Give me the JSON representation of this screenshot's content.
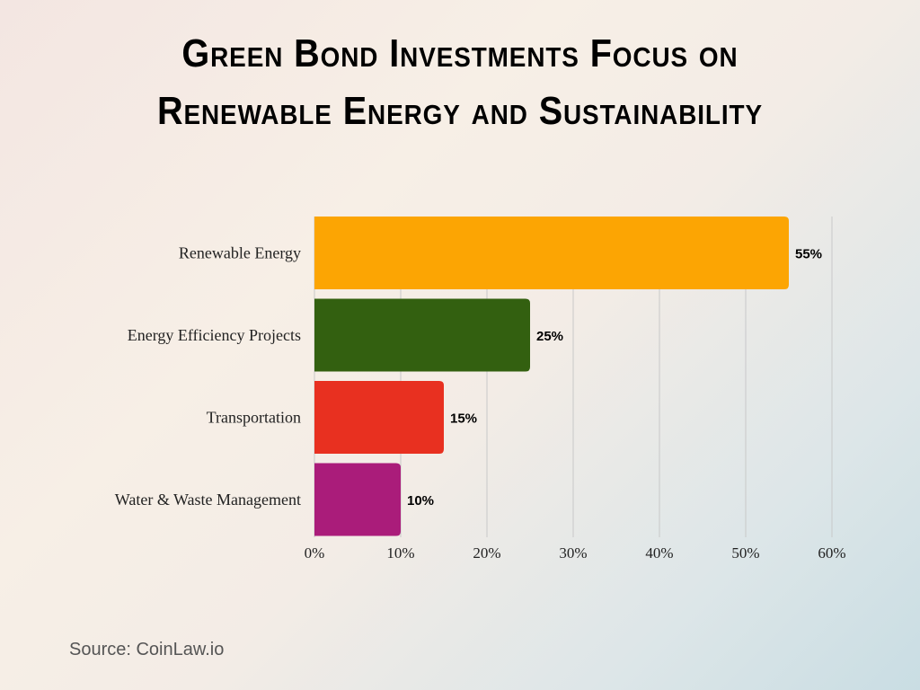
{
  "chart_data": {
    "type": "bar",
    "orientation": "horizontal",
    "title_lines": [
      "Green Bond Investments Focus on",
      "Renewable Energy and Sustainability"
    ],
    "categories": [
      "Renewable Energy",
      "Energy Efficiency Projects",
      "Transportation",
      "Water & Waste Management"
    ],
    "values": [
      55,
      25,
      15,
      10
    ],
    "data_labels": [
      "55%",
      "25%",
      "15%",
      "10%"
    ],
    "colors": [
      "#fca503",
      "#336010",
      "#e83020",
      "#aa1c7a"
    ],
    "xlim": [
      0,
      60
    ],
    "xticks": [
      0,
      10,
      20,
      30,
      40,
      50,
      60
    ],
    "xtick_labels": [
      "0%",
      "10%",
      "20%",
      "30%",
      "40%",
      "50%",
      "60%"
    ],
    "xlabel": "",
    "ylabel": "",
    "grid": "vertical"
  },
  "source": "Source: CoinLaw.io"
}
